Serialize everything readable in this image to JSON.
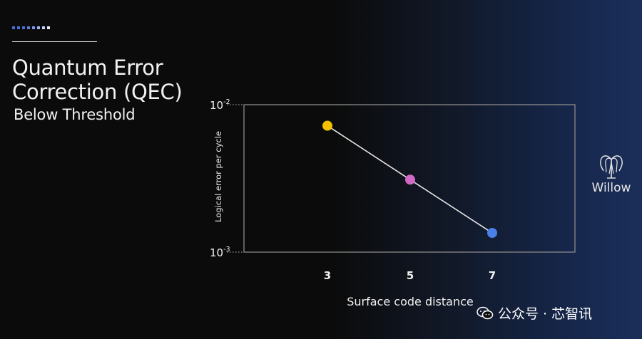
{
  "slide": {
    "title_line1": "Quantum Error",
    "title_line2": "Correction (QEC)",
    "subtitle": "Below Threshold",
    "dot_colors": [
      "#4a6fd8",
      "#4a6fd8",
      "#4a6fd8",
      "#5b7fe0",
      "#7a9ae8",
      "#9db5ef",
      "#c3d2f5",
      "#e6ecfb"
    ],
    "accent_rule_color": "#d8d8d8"
  },
  "brand": {
    "logo_icon": "willow-tree-icon",
    "logo_text": "Willow"
  },
  "watermark": {
    "icon": "wechat-icon",
    "text": "公众号 · 芯智讯"
  },
  "chart_data": {
    "type": "line",
    "title": "",
    "xlabel": "Surface code distance",
    "ylabel": "Logical error per cycle",
    "x_scale": "categorical",
    "y_scale": "log",
    "ylim": [
      0.001,
      0.01
    ],
    "y_ticks": [
      {
        "value": 0.01,
        "base": "10",
        "exp": "-2"
      },
      {
        "value": 0.001,
        "base": "10",
        "exp": "-3"
      }
    ],
    "categories": [
      "3",
      "5",
      "7"
    ],
    "series": [
      {
        "values": [
          0.0072,
          0.0031,
          0.00135
        ],
        "point_colors": [
          "#f5c200",
          "#d16ac6",
          "#4a7fe8"
        ],
        "line_color": "#e6e6e6"
      }
    ],
    "grid": false,
    "legend": "none"
  }
}
